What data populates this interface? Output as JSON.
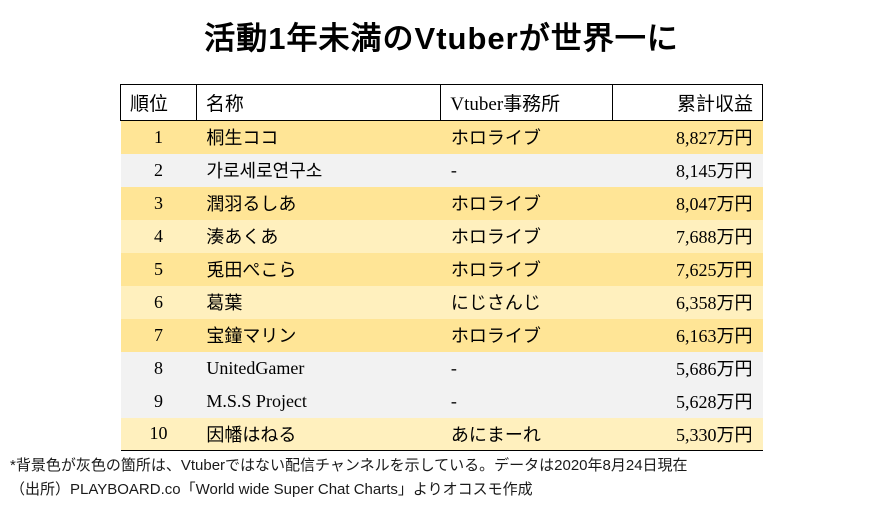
{
  "title": "活動1年未満のVtuberが世界一に",
  "colors": {
    "row_yellow": "#FFE596",
    "row_yellow_light": "#FFF0BE",
    "row_gray": "#F2F2F2",
    "border": "#000000"
  },
  "chart_data": {
    "type": "table",
    "title": "活動1年未満のVtuberが世界一に",
    "columns": [
      "順位",
      "名称",
      "Vtuber事務所",
      "累計収益"
    ],
    "revenue_unit": "万円",
    "rows": [
      {
        "rank": "1",
        "name": "桐生ココ",
        "agency": "ホロライブ",
        "revenue": "8,827万円",
        "revenue_man_yen": 8827,
        "bg": "yellow"
      },
      {
        "rank": "2",
        "name": "가로세로연구소",
        "agency": "-",
        "revenue": "8,145万円",
        "revenue_man_yen": 8145,
        "bg": "gray"
      },
      {
        "rank": "3",
        "name": "潤羽るしあ",
        "agency": "ホロライブ",
        "revenue": "8,047万円",
        "revenue_man_yen": 8047,
        "bg": "yellow"
      },
      {
        "rank": "4",
        "name": "湊あくあ",
        "agency": "ホロライブ",
        "revenue": "7,688万円",
        "revenue_man_yen": 7688,
        "bg": "yellow-light"
      },
      {
        "rank": "5",
        "name": "兎田ぺこら",
        "agency": "ホロライブ",
        "revenue": "7,625万円",
        "revenue_man_yen": 7625,
        "bg": "yellow"
      },
      {
        "rank": "6",
        "name": "葛葉",
        "agency": "にじさんじ",
        "revenue": "6,358万円",
        "revenue_man_yen": 6358,
        "bg": "yellow-light"
      },
      {
        "rank": "7",
        "name": "宝鐘マリン",
        "agency": "ホロライブ",
        "revenue": "6,163万円",
        "revenue_man_yen": 6163,
        "bg": "yellow"
      },
      {
        "rank": "8",
        "name": "UnitedGamer",
        "agency": "-",
        "revenue": "5,686万円",
        "revenue_man_yen": 5686,
        "bg": "gray"
      },
      {
        "rank": "9",
        "name": "M.S.S Project",
        "agency": "-",
        "revenue": "5,628万円",
        "revenue_man_yen": 5628,
        "bg": "gray"
      },
      {
        "rank": "10",
        "name": "因幡はねる",
        "agency": "あにまーれ",
        "revenue": "5,330万円",
        "revenue_man_yen": 5330,
        "bg": "yellow-light"
      }
    ]
  },
  "footnote": {
    "line1": "*背景色が灰色の箇所は、Vtuberではない配信チャンネルを示している。データは2020年8月24日現在",
    "line2": "（出所）PLAYBOARD.co「World wide Super Chat Charts」よりオコスモ作成"
  }
}
